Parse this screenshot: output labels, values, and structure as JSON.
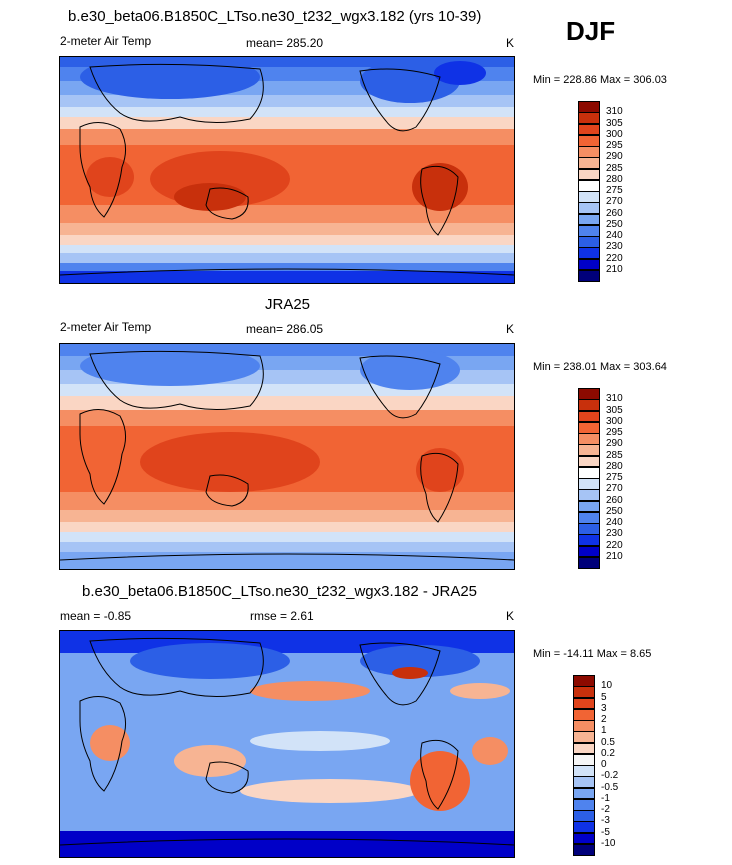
{
  "season": "DJF",
  "colors": {
    "temp": [
      "#00007a",
      "#0000c8",
      "#0f32e6",
      "#2c5fe6",
      "#4f83ee",
      "#79a6f2",
      "#a6c4f5",
      "#d2e3f8",
      "#ffffff",
      "#fad6c4",
      "#f7b493",
      "#f58e63",
      "#f16434",
      "#e0441c",
      "#c8300c",
      "#8c0a00"
    ],
    "diff": [
      "#00007a",
      "#0000c8",
      "#0f32e6",
      "#2c5fe6",
      "#4f83ee",
      "#79a6f2",
      "#a6c4f5",
      "#d2e3f8",
      "#f6f6f6",
      "#fad6c4",
      "#f7b493",
      "#f58e63",
      "#f16434",
      "#e0441c",
      "#c8300c",
      "#8c0a00"
    ],
    "land_outline": "#000000"
  },
  "panels": [
    {
      "title": "b.e30_beta06.B1850C_LTso.ne30_t232_wgx3.182 (yrs 10-39)",
      "variable": "2-meter Air Temp",
      "stat": "mean= 285.20",
      "units": "K",
      "minmax": "Min = 228.86 Max = 306.03",
      "colorbar": {
        "palette": "temp",
        "labels": [
          "310",
          "305",
          "300",
          "295",
          "290",
          "285",
          "280",
          "275",
          "270",
          "260",
          "250",
          "240",
          "230",
          "220",
          "210"
        ]
      }
    },
    {
      "title": "JRA25",
      "variable": "2-meter Air Temp",
      "stat": "mean= 286.05",
      "units": "K",
      "minmax": "Min = 238.01 Max = 303.64",
      "colorbar": {
        "palette": "temp",
        "labels": [
          "310",
          "305",
          "300",
          "295",
          "290",
          "285",
          "280",
          "275",
          "270",
          "260",
          "250",
          "240",
          "230",
          "220",
          "210"
        ]
      }
    },
    {
      "title": "b.e30_beta06.B1850C_LTso.ne30_t232_wgx3.182 - JRA25",
      "variable": "mean =  -0.85",
      "stat": "rmse =   2.61",
      "units": "K",
      "minmax": "Min = -14.11 Max =   8.65",
      "colorbar": {
        "palette": "diff",
        "labels": [
          "10",
          "5",
          "3",
          "2",
          "1",
          "0.5",
          "0.2",
          "0",
          "-0.2",
          "-0.5",
          "-1",
          "-2",
          "-3",
          "-5",
          "-10"
        ]
      }
    }
  ]
}
